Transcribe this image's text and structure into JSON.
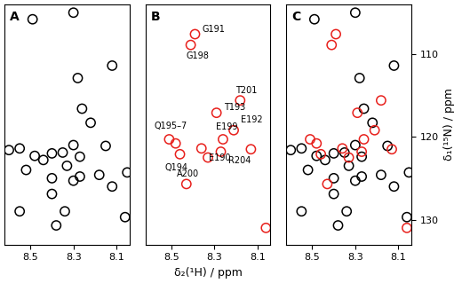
{
  "chart_data": [
    {
      "type": "scatter",
      "title": "A",
      "xlim": [
        8.62,
        8.04
      ],
      "ylim": [
        133,
        104
      ],
      "xticks": [
        8.5,
        8.3,
        8.1
      ],
      "yticks": [
        110,
        120,
        130
      ],
      "tick_labels": "x",
      "series": [
        {
          "color": "#000000",
          "marker": "o",
          "x": [
            8.49,
            8.3,
            8.28,
            8.12,
            8.26,
            8.22,
            8.6,
            8.55,
            8.48,
            8.44,
            8.4,
            8.35,
            8.3,
            8.27,
            8.33,
            8.52,
            8.4,
            8.3,
            8.27,
            8.18,
            8.4,
            8.15,
            8.55,
            8.34,
            8.06,
            8.05,
            8.12,
            8.38
          ],
          "y": [
            105.8,
            105.0,
            112.9,
            111.4,
            116.6,
            118.3,
            121.6,
            121.4,
            122.3,
            122.8,
            122.0,
            121.9,
            121.0,
            122.4,
            123.5,
            124.0,
            125.0,
            125.3,
            124.8,
            124.6,
            126.9,
            121.1,
            129.0,
            129.0,
            129.7,
            124.3,
            126.0,
            130.7
          ]
        }
      ]
    },
    {
      "type": "scatter",
      "title": "B",
      "xlabel": "δ₂(¹H) / ppm",
      "xlim": [
        8.62,
        8.04
      ],
      "ylim": [
        133,
        104
      ],
      "xticks": [
        8.5,
        8.3,
        8.1
      ],
      "yticks": [
        110,
        120,
        130
      ],
      "tick_labels": "x",
      "series": [
        {
          "color": "#e8201c",
          "marker": "o",
          "x": [
            8.39,
            8.41,
            8.18,
            8.29,
            8.21,
            8.26,
            8.51,
            8.48,
            8.36,
            8.46,
            8.27,
            8.43,
            8.06,
            8.33,
            8.13
          ],
          "y": [
            107.6,
            108.9,
            115.6,
            117.1,
            119.2,
            120.3,
            120.3,
            120.8,
            121.4,
            122.1,
            121.8,
            125.7,
            131.0,
            122.5,
            121.5
          ],
          "labels": [
            "G191",
            "G198",
            "T201",
            "T193",
            "E192",
            "E199",
            "Q195–7",
            null,
            "E190",
            "Q194",
            "R204",
            "A200",
            null,
            null,
            null
          ]
        }
      ]
    },
    {
      "type": "scatter",
      "title": "C",
      "ylabel": "δ₁(¹⁵N) / ppm",
      "xlim": [
        8.62,
        8.04
      ],
      "ylim": [
        133,
        104
      ],
      "xticks": [
        8.5,
        8.3,
        8.1
      ],
      "yticks": [
        110,
        120,
        130
      ],
      "series": [
        {
          "color": "#000000",
          "marker": "o",
          "x": [
            8.49,
            8.3,
            8.28,
            8.12,
            8.26,
            8.22,
            8.6,
            8.55,
            8.48,
            8.44,
            8.4,
            8.35,
            8.3,
            8.27,
            8.33,
            8.52,
            8.4,
            8.3,
            8.27,
            8.18,
            8.4,
            8.15,
            8.55,
            8.34,
            8.06,
            8.05,
            8.12,
            8.38
          ],
          "y": [
            105.8,
            105.0,
            112.9,
            111.4,
            116.6,
            118.3,
            121.6,
            121.4,
            122.3,
            122.8,
            122.0,
            121.9,
            121.0,
            122.4,
            123.5,
            124.0,
            125.0,
            125.3,
            124.8,
            124.6,
            126.9,
            121.1,
            129.0,
            129.0,
            129.7,
            124.3,
            126.0,
            130.7
          ]
        },
        {
          "color": "#e8201c",
          "marker": "o",
          "x": [
            8.39,
            8.41,
            8.18,
            8.29,
            8.21,
            8.26,
            8.51,
            8.48,
            8.36,
            8.46,
            8.27,
            8.43,
            8.06,
            8.33,
            8.13
          ],
          "y": [
            107.6,
            108.9,
            115.6,
            117.1,
            119.2,
            120.3,
            120.3,
            120.8,
            121.4,
            122.1,
            121.8,
            125.7,
            131.0,
            122.5,
            121.5
          ]
        }
      ]
    }
  ]
}
